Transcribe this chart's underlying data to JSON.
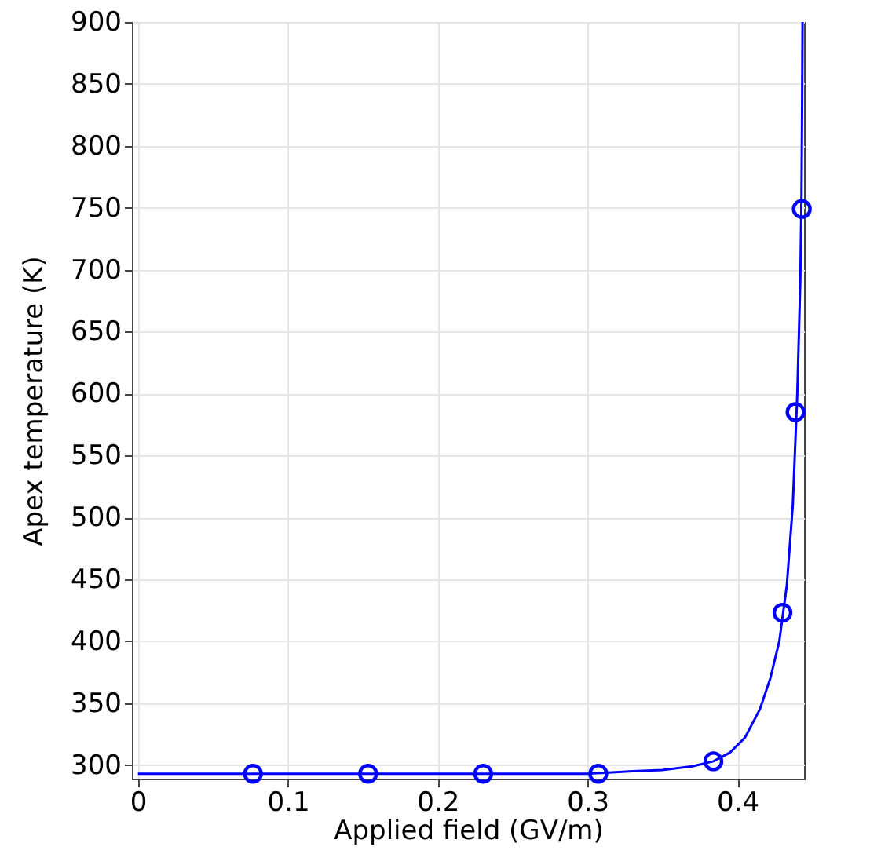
{
  "chart_data": {
    "type": "line",
    "xlabel": "Applied field (GV/m)",
    "ylabel": "Apex temperature (K)",
    "xlim": [
      -0.004,
      0.4445
    ],
    "ylim": [
      289,
      900
    ],
    "xticks": [
      0,
      0.1,
      0.2,
      0.3,
      0.4
    ],
    "yticks": [
      300,
      350,
      400,
      450,
      500,
      550,
      600,
      650,
      700,
      750,
      800,
      850,
      900
    ],
    "grid": true,
    "series": [
      {
        "type": "line",
        "color": "#0000ff",
        "marker": "none",
        "line_style": "solid",
        "x": [
          0,
          0.1,
          0.2,
          0.3,
          0.33,
          0.35,
          0.37,
          0.384,
          0.395,
          0.405,
          0.415,
          0.422,
          0.428,
          0.433,
          0.437,
          0.44,
          0.442,
          0.4428,
          0.4432,
          0.4435
        ],
        "values": [
          293,
          293,
          293,
          293,
          295,
          296,
          299,
          303,
          310,
          322,
          345,
          370,
          400,
          445,
          510,
          600,
          690,
          760,
          830,
          900
        ]
      },
      {
        "type": "scatter",
        "color": "#0000ff",
        "marker": "circle",
        "x": [
          0.0768,
          0.1536,
          0.2304,
          0.3072,
          0.384,
          0.4301,
          0.4388,
          0.443
        ],
        "values": [
          293,
          293,
          293,
          293,
          303,
          423,
          585,
          749
        ]
      }
    ]
  }
}
